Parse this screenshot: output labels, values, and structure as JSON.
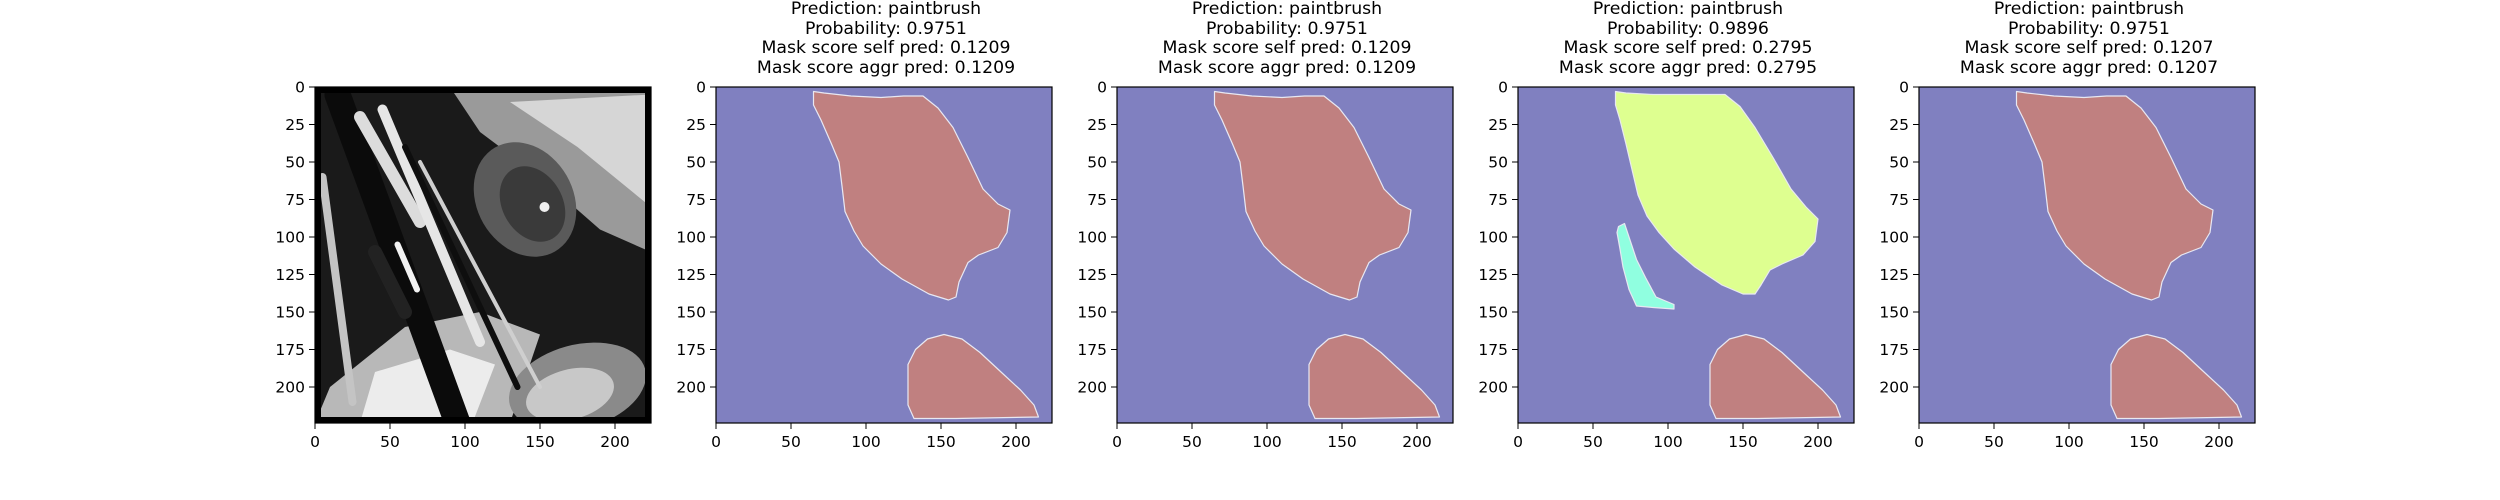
{
  "chart_data": [
    {
      "type": "image",
      "panel": "input-image",
      "title_lines": [],
      "xticks": [
        0,
        50,
        100,
        150,
        200
      ],
      "yticks": [
        0,
        25,
        50,
        75,
        100,
        125,
        150,
        175,
        200
      ],
      "xlim": [
        0,
        224
      ],
      "ylim": [
        224,
        0
      ],
      "content": "grayscale photo of paintbrushes"
    },
    {
      "type": "image",
      "panel": "mask-1",
      "title_lines": [
        "Prediction: paintbrush",
        "Probability: 0.9751",
        "Mask score self pred: 0.1209",
        "Mask score aggr pred: 0.1209"
      ],
      "xticks": [
        0,
        50,
        100,
        150,
        200
      ],
      "yticks": [
        0,
        25,
        50,
        75,
        100,
        125,
        150,
        175,
        200
      ],
      "xlim": [
        0,
        224
      ],
      "ylim": [
        224,
        0
      ],
      "background_color": "#8080c0",
      "regions": [
        {
          "color": "#c08080",
          "points": [
            [
              65,
              3
            ],
            [
              72,
              4
            ],
            [
              90,
              6
            ],
            [
              110,
              7
            ],
            [
              125,
              6
            ],
            [
              138,
              6
            ],
            [
              148,
              14
            ],
            [
              158,
              27
            ],
            [
              168,
              47
            ],
            [
              178,
              68
            ],
            [
              188,
              78
            ],
            [
              196,
              82
            ],
            [
              194,
              97
            ],
            [
              188,
              107
            ],
            [
              175,
              112
            ],
            [
              168,
              117
            ],
            [
              162,
              130
            ],
            [
              160,
              140
            ],
            [
              155,
              142
            ],
            [
              142,
              138
            ],
            [
              124,
              128
            ],
            [
              110,
              118
            ],
            [
              98,
              106
            ],
            [
              92,
              96
            ],
            [
              86,
              83
            ],
            [
              84,
              66
            ],
            [
              82,
              50
            ],
            [
              77,
              38
            ],
            [
              70,
              22
            ],
            [
              65,
              12
            ]
          ]
        },
        {
          "color": "#c08080",
          "points": [
            [
              128,
              185
            ],
            [
              133,
              175
            ],
            [
              141,
              168
            ],
            [
              152,
              165
            ],
            [
              164,
              168
            ],
            [
              176,
              177
            ],
            [
              190,
              190
            ],
            [
              203,
              202
            ],
            [
              212,
              212
            ],
            [
              215,
              220
            ],
            [
              160,
              221
            ],
            [
              132,
              221
            ],
            [
              128,
              212
            ]
          ]
        }
      ]
    },
    {
      "type": "image",
      "panel": "mask-2",
      "title_lines": [
        "Prediction: paintbrush",
        "Probability: 0.9751",
        "Mask score self pred: 0.1209",
        "Mask score aggr pred: 0.1209"
      ],
      "xticks": [
        0,
        50,
        100,
        150,
        200
      ],
      "yticks": [
        0,
        25,
        50,
        75,
        100,
        125,
        150,
        175,
        200
      ],
      "xlim": [
        0,
        224
      ],
      "ylim": [
        224,
        0
      ],
      "background_color": "#8080c0",
      "regions": [
        {
          "color": "#c08080",
          "points": [
            [
              65,
              3
            ],
            [
              72,
              4
            ],
            [
              90,
              6
            ],
            [
              110,
              7
            ],
            [
              125,
              6
            ],
            [
              138,
              6
            ],
            [
              148,
              14
            ],
            [
              158,
              27
            ],
            [
              168,
              47
            ],
            [
              178,
              68
            ],
            [
              188,
              78
            ],
            [
              196,
              82
            ],
            [
              194,
              97
            ],
            [
              188,
              107
            ],
            [
              175,
              112
            ],
            [
              168,
              117
            ],
            [
              162,
              130
            ],
            [
              160,
              140
            ],
            [
              155,
              142
            ],
            [
              142,
              138
            ],
            [
              124,
              128
            ],
            [
              110,
              118
            ],
            [
              98,
              106
            ],
            [
              92,
              96
            ],
            [
              86,
              83
            ],
            [
              84,
              66
            ],
            [
              82,
              50
            ],
            [
              77,
              38
            ],
            [
              70,
              22
            ],
            [
              65,
              12
            ]
          ]
        },
        {
          "color": "#c08080",
          "points": [
            [
              128,
              185
            ],
            [
              133,
              175
            ],
            [
              141,
              168
            ],
            [
              152,
              165
            ],
            [
              164,
              168
            ],
            [
              176,
              177
            ],
            [
              190,
              190
            ],
            [
              203,
              202
            ],
            [
              212,
              212
            ],
            [
              215,
              220
            ],
            [
              160,
              221
            ],
            [
              132,
              221
            ],
            [
              128,
              212
            ]
          ]
        }
      ]
    },
    {
      "type": "image",
      "panel": "mask-3",
      "title_lines": [
        "Prediction: paintbrush",
        "Probability: 0.9896",
        "Mask score self pred: 0.2795",
        "Mask score aggr pred: 0.2795"
      ],
      "xticks": [
        0,
        50,
        100,
        150,
        200
      ],
      "yticks": [
        0,
        25,
        50,
        75,
        100,
        125,
        150,
        175,
        200
      ],
      "xlim": [
        0,
        224
      ],
      "ylim": [
        224,
        0
      ],
      "background_color": "#8080c0",
      "regions": [
        {
          "color": "#deff90",
          "points": [
            [
              65,
              3
            ],
            [
              72,
              4
            ],
            [
              90,
              5
            ],
            [
              110,
              5
            ],
            [
              125,
              5
            ],
            [
              138,
              5
            ],
            [
              148,
              13
            ],
            [
              158,
              27
            ],
            [
              170,
              47
            ],
            [
              182,
              68
            ],
            [
              192,
              80
            ],
            [
              200,
              88
            ],
            [
              198,
              103
            ],
            [
              190,
              112
            ],
            [
              176,
              118
            ],
            [
              168,
              122
            ],
            [
              162,
              132
            ],
            [
              158,
              138
            ],
            [
              150,
              138
            ],
            [
              136,
              132
            ],
            [
              118,
              120
            ],
            [
              104,
              108
            ],
            [
              94,
              97
            ],
            [
              86,
              86
            ],
            [
              80,
              72
            ],
            [
              76,
              55
            ],
            [
              72,
              38
            ],
            [
              68,
              22
            ],
            [
              65,
              12
            ]
          ]
        },
        {
          "color": "#90ffe0",
          "points": [
            [
              67,
              93
            ],
            [
              71,
              91
            ],
            [
              74,
              100
            ],
            [
              79,
              115
            ],
            [
              85,
              127
            ],
            [
              92,
              140
            ],
            [
              104,
              145
            ],
            [
              104,
              148
            ],
            [
              90,
              147
            ],
            [
              79,
              146
            ],
            [
              74,
              135
            ],
            [
              70,
              120
            ],
            [
              68,
              108
            ],
            [
              66,
              97
            ]
          ]
        },
        {
          "color": "#c08080",
          "points": [
            [
              128,
              185
            ],
            [
              133,
              175
            ],
            [
              141,
              168
            ],
            [
              152,
              165
            ],
            [
              164,
              168
            ],
            [
              176,
              177
            ],
            [
              190,
              190
            ],
            [
              203,
              202
            ],
            [
              212,
              212
            ],
            [
              215,
              220
            ],
            [
              160,
              221
            ],
            [
              132,
              221
            ],
            [
              128,
              212
            ]
          ]
        }
      ]
    },
    {
      "type": "image",
      "panel": "mask-4",
      "title_lines": [
        "Prediction: paintbrush",
        "Probability: 0.9751",
        "Mask score self pred: 0.1207",
        "Mask score aggr pred: 0.1207"
      ],
      "xticks": [
        0,
        50,
        100,
        150,
        200
      ],
      "yticks": [
        0,
        25,
        50,
        75,
        100,
        125,
        150,
        175,
        200
      ],
      "xlim": [
        0,
        224
      ],
      "ylim": [
        224,
        0
      ],
      "background_color": "#8080c0",
      "regions": [
        {
          "color": "#c08080",
          "points": [
            [
              65,
              3
            ],
            [
              72,
              4
            ],
            [
              90,
              6
            ],
            [
              110,
              7
            ],
            [
              125,
              6
            ],
            [
              138,
              6
            ],
            [
              148,
              14
            ],
            [
              158,
              27
            ],
            [
              168,
              47
            ],
            [
              178,
              68
            ],
            [
              188,
              78
            ],
            [
              196,
              82
            ],
            [
              194,
              97
            ],
            [
              188,
              107
            ],
            [
              175,
              112
            ],
            [
              168,
              117
            ],
            [
              162,
              130
            ],
            [
              160,
              140
            ],
            [
              155,
              142
            ],
            [
              142,
              138
            ],
            [
              124,
              128
            ],
            [
              110,
              118
            ],
            [
              98,
              106
            ],
            [
              92,
              96
            ],
            [
              86,
              83
            ],
            [
              84,
              66
            ],
            [
              82,
              50
            ],
            [
              77,
              38
            ],
            [
              70,
              22
            ],
            [
              65,
              12
            ]
          ]
        },
        {
          "color": "#c08080",
          "points": [
            [
              128,
              185
            ],
            [
              133,
              175
            ],
            [
              141,
              168
            ],
            [
              152,
              165
            ],
            [
              164,
              168
            ],
            [
              176,
              177
            ],
            [
              190,
              190
            ],
            [
              203,
              202
            ],
            [
              212,
              212
            ],
            [
              215,
              220
            ],
            [
              160,
              221
            ],
            [
              132,
              221
            ],
            [
              128,
              212
            ]
          ]
        }
      ]
    }
  ]
}
